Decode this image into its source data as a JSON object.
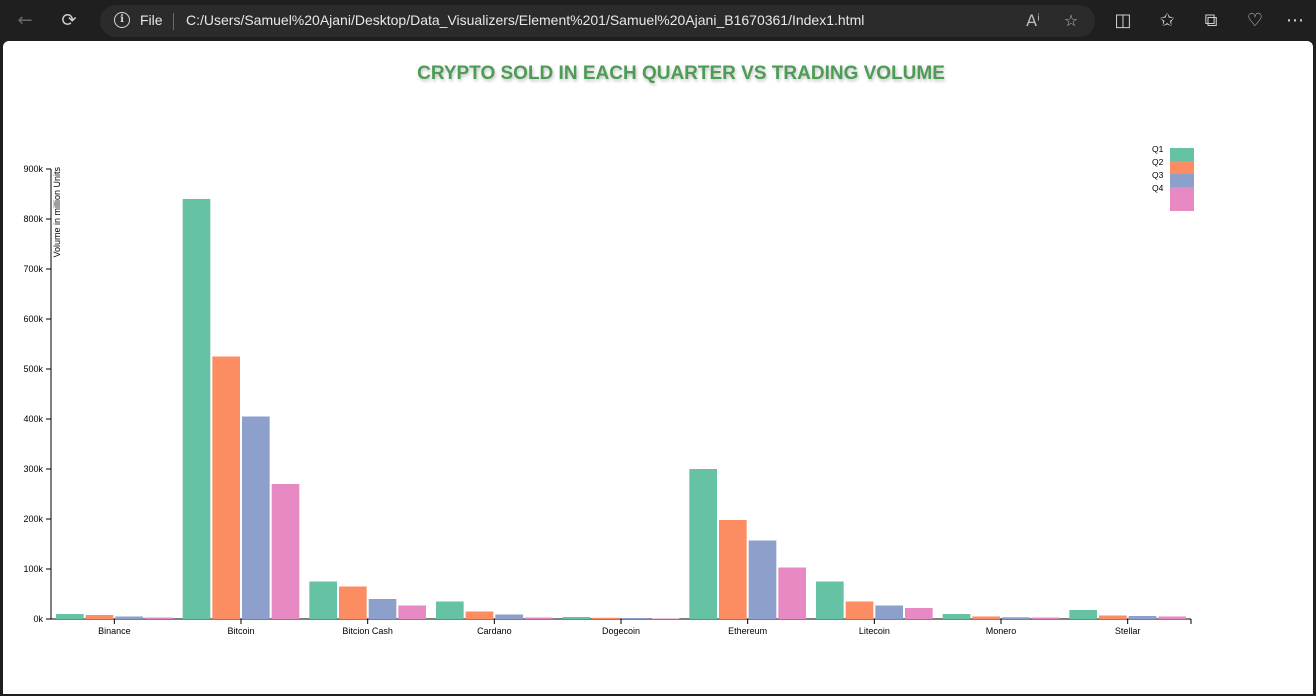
{
  "browser": {
    "address_scheme": "File",
    "url": "C:/Users/Samuel%20Ajani/Desktop/Data_Visualizers/Element%201/Samuel%20Ajani_B1670361/Index1.html"
  },
  "page": {
    "title": "CRYPTO SOLD IN EACH QUARTER VS TRADING VOLUME"
  },
  "chart_data": {
    "type": "bar",
    "title": "CRYPTO SOLD IN EACH QUARTER VS TRADING VOLUME",
    "xlabel": "",
    "ylabel": "Volume in million Units",
    "ylim": [
      0,
      900000
    ],
    "yticks": [
      0,
      100000,
      200000,
      300000,
      400000,
      500000,
      600000,
      700000,
      800000,
      900000
    ],
    "ytick_labels": [
      "0k",
      "100k",
      "200k",
      "300k",
      "400k",
      "500k",
      "600k",
      "700k",
      "800k",
      "900k"
    ],
    "categories": [
      "Binance",
      "Bitcoin",
      "Bitcion Cash",
      "Cardano",
      "Dogecoin",
      "Ethereum",
      "Litecoin",
      "Monero",
      "Stellar"
    ],
    "series": [
      {
        "name": "Q1",
        "color": "#66c2a5",
        "values": [
          10000,
          840000,
          75000,
          35000,
          4000,
          300000,
          75000,
          10000,
          18000
        ]
      },
      {
        "name": "Q2",
        "color": "#fc8d62",
        "values": [
          8000,
          525000,
          65000,
          15000,
          2500,
          198000,
          35000,
          5000,
          7000
        ]
      },
      {
        "name": "Q3",
        "color": "#8da0cb",
        "values": [
          5000,
          405000,
          40000,
          9000,
          2000,
          157000,
          27000,
          3500,
          6000
        ]
      },
      {
        "name": "Q4",
        "color": "#e78ac3",
        "values": [
          3000,
          270000,
          27000,
          3000,
          1000,
          103000,
          22000,
          3000,
          5000
        ]
      }
    ],
    "grid": false,
    "legend_position": "top-right"
  }
}
